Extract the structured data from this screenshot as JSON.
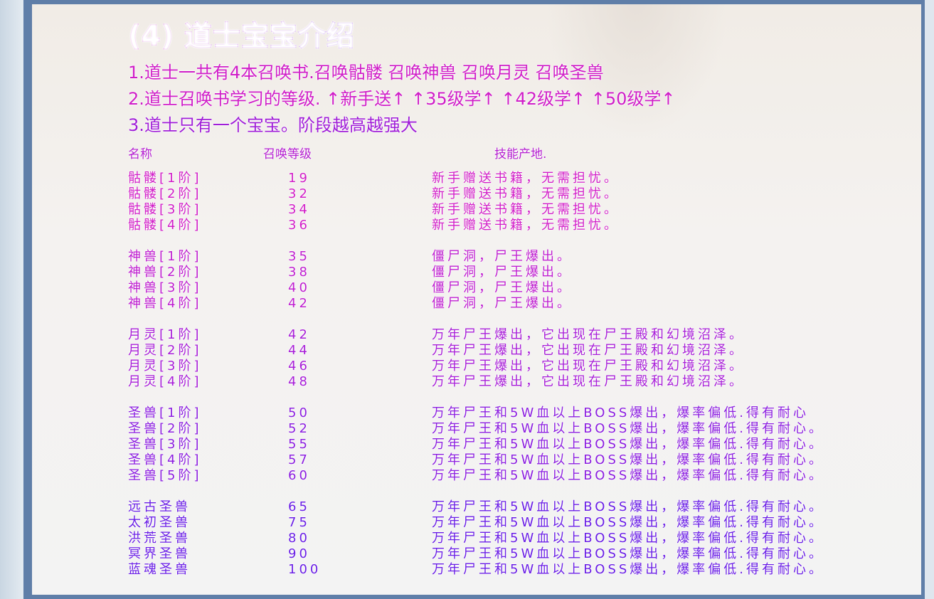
{
  "title": "(4) 道士宝宝介绍",
  "lines": [
    "1.道士一共有4本召唤书.召唤骷髅     召唤神兽       召唤月灵   召唤圣兽",
    "2.道士召唤书学习的等级.     ↑新手送↑  ↑35级学↑ ↑42级学↑  ↑50级学↑",
    "3.道士只有一个宝宝。阶段越高越强大"
  ],
  "headers": {
    "name": "名称",
    "level": "召唤等级",
    "source": "技能产地."
  },
  "groups": [
    {
      "color": "#d21ec8",
      "rows": [
        {
          "name": "骷髅[1阶]",
          "level": "19",
          "source": "新手赠送书籍，无需担忧。"
        },
        {
          "name": "骷髅[2阶]",
          "level": "32",
          "source": "新手赠送书籍，无需担忧。"
        },
        {
          "name": "骷髅[3阶]",
          "level": "34",
          "source": "新手赠送书籍，无需担忧。"
        },
        {
          "name": "骷髅[4阶]",
          "level": "36",
          "source": "新手赠送书籍，无需担忧。"
        }
      ]
    },
    {
      "color": "#bf1ed0",
      "rows": [
        {
          "name": "神兽[1阶]",
          "level": "35",
          "source": "僵尸洞，尸王爆出。"
        },
        {
          "name": "神兽[2阶]",
          "level": "38",
          "source": "僵尸洞，尸王爆出。"
        },
        {
          "name": "神兽[3阶]",
          "level": "40",
          "source": "僵尸洞，尸王爆出。"
        },
        {
          "name": "神兽[4阶]",
          "level": "42",
          "source": "僵尸洞，尸王爆出。"
        }
      ]
    },
    {
      "color": "#a81ed8",
      "rows": [
        {
          "name": "月灵[1阶]",
          "level": "42",
          "source": "万年尸王爆出，它出现在尸王殿和幻境沼泽。"
        },
        {
          "name": "月灵[2阶]",
          "level": "44",
          "source": "万年尸王爆出，它出现在尸王殿和幻境沼泽。"
        },
        {
          "name": "月灵[3阶]",
          "level": "46",
          "source": "万年尸王爆出，它出现在尸王殿和幻境沼泽。"
        },
        {
          "name": "月灵[4阶]",
          "level": "48",
          "source": "万年尸王爆出，它出现在尸王殿和幻境沼泽。"
        }
      ]
    },
    {
      "color": "#8c1ee0",
      "rows": [
        {
          "name": "圣兽[1阶]",
          "level": "50",
          "source": "万年尸王和5W血以上BOSS爆出，爆率偏低.得有耐心"
        },
        {
          "name": "圣兽[2阶]",
          "level": "52",
          "source": "万年尸王和5W血以上BOSS爆出，爆率偏低.得有耐心。"
        },
        {
          "name": "圣兽[3阶]",
          "level": "55",
          "source": "万年尸王和5W血以上BOSS爆出，爆率偏低.得有耐心。"
        },
        {
          "name": "圣兽[4阶]",
          "level": "57",
          "source": "万年尸王和5W血以上BOSS爆出，爆率偏低.得有耐心。"
        },
        {
          "name": "圣兽[5阶]",
          "level": "60",
          "source": "万年尸王和5W血以上BOSS爆出，爆率偏低.得有耐心。"
        }
      ]
    },
    {
      "color": "#6a1ee6",
      "rows": [
        {
          "name": "远古圣兽",
          "level": "65",
          "source": "万年尸王和5W血以上BOSS爆出，爆率偏低.得有耐心。"
        },
        {
          "name": "太初圣兽",
          "level": "75",
          "source": "万年尸王和5W血以上BOSS爆出，爆率偏低.得有耐心。"
        },
        {
          "name": "洪荒圣兽",
          "level": "80",
          "source": "万年尸王和5W血以上BOSS爆出，爆率偏低.得有耐心。"
        },
        {
          "name": "冥界圣兽",
          "level": "90",
          "source": "万年尸王和5W血以上BOSS爆出，爆率偏低.得有耐心。"
        },
        {
          "name": "蓝魂圣兽",
          "level": "100",
          "source": "万年尸王和5W血以上BOSS爆出，爆率偏低.得有耐心。"
        }
      ]
    }
  ]
}
